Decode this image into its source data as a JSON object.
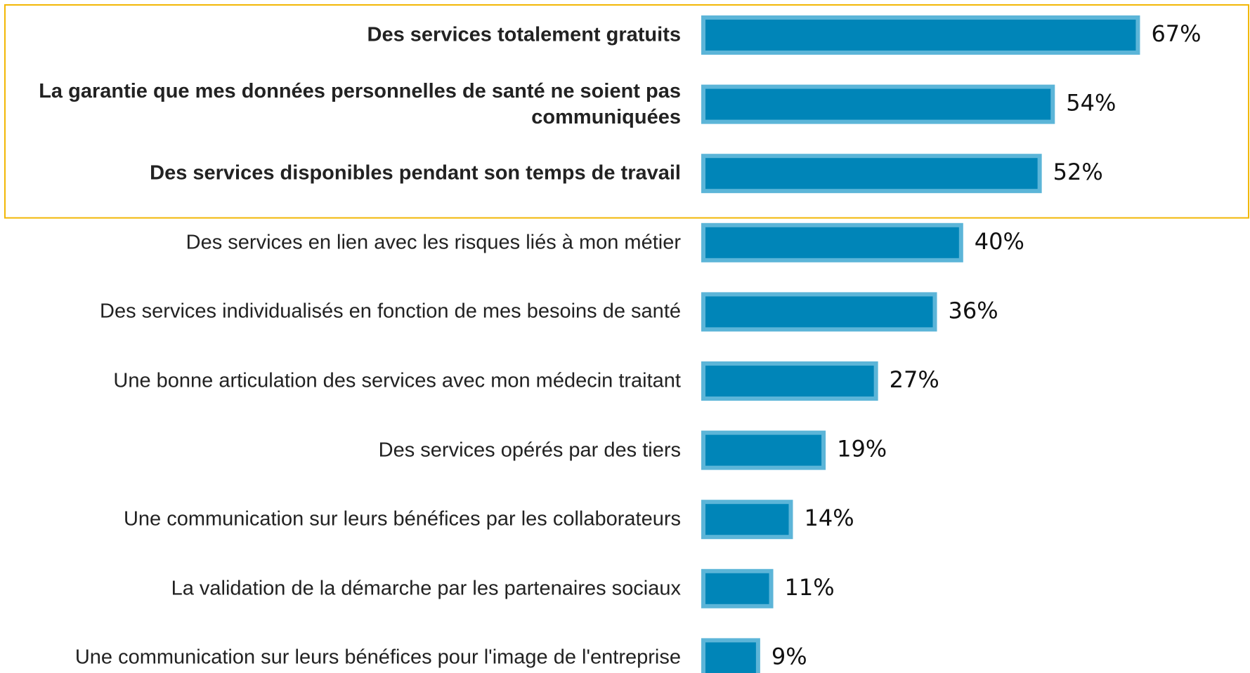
{
  "chart_data": {
    "type": "hbar",
    "categories": [
      "Des services totalement gratuits",
      "La garantie que mes données personnelles de santé ne soient pas communiquées",
      "Des services disponibles pendant son temps de travail",
      "Des services en lien avec les risques liés à mon métier",
      "Des services individualisés en fonction de mes besoins de santé",
      "Une bonne articulation des services avec mon médecin traitant",
      "Des services opérés par des tiers",
      "Une communication sur leurs bénéfices par les collaborateurs",
      "La validation de la démarche par les partenaires sociaux",
      "Une communication sur leurs bénéfices pour l'image de l'entreprise"
    ],
    "values": [
      67,
      54,
      52,
      40,
      36,
      27,
      19,
      14,
      11,
      9
    ],
    "value_labels": [
      "67%",
      "54%",
      "52%",
      "40%",
      "36%",
      "27%",
      "19%",
      "14%",
      "11%",
      "9%"
    ],
    "color": "#0085b8",
    "edge_color": "#5cb5d8",
    "xlim": [
      0,
      100
    ],
    "highlight_rows": 3,
    "highlight_color": "#f2b705"
  }
}
